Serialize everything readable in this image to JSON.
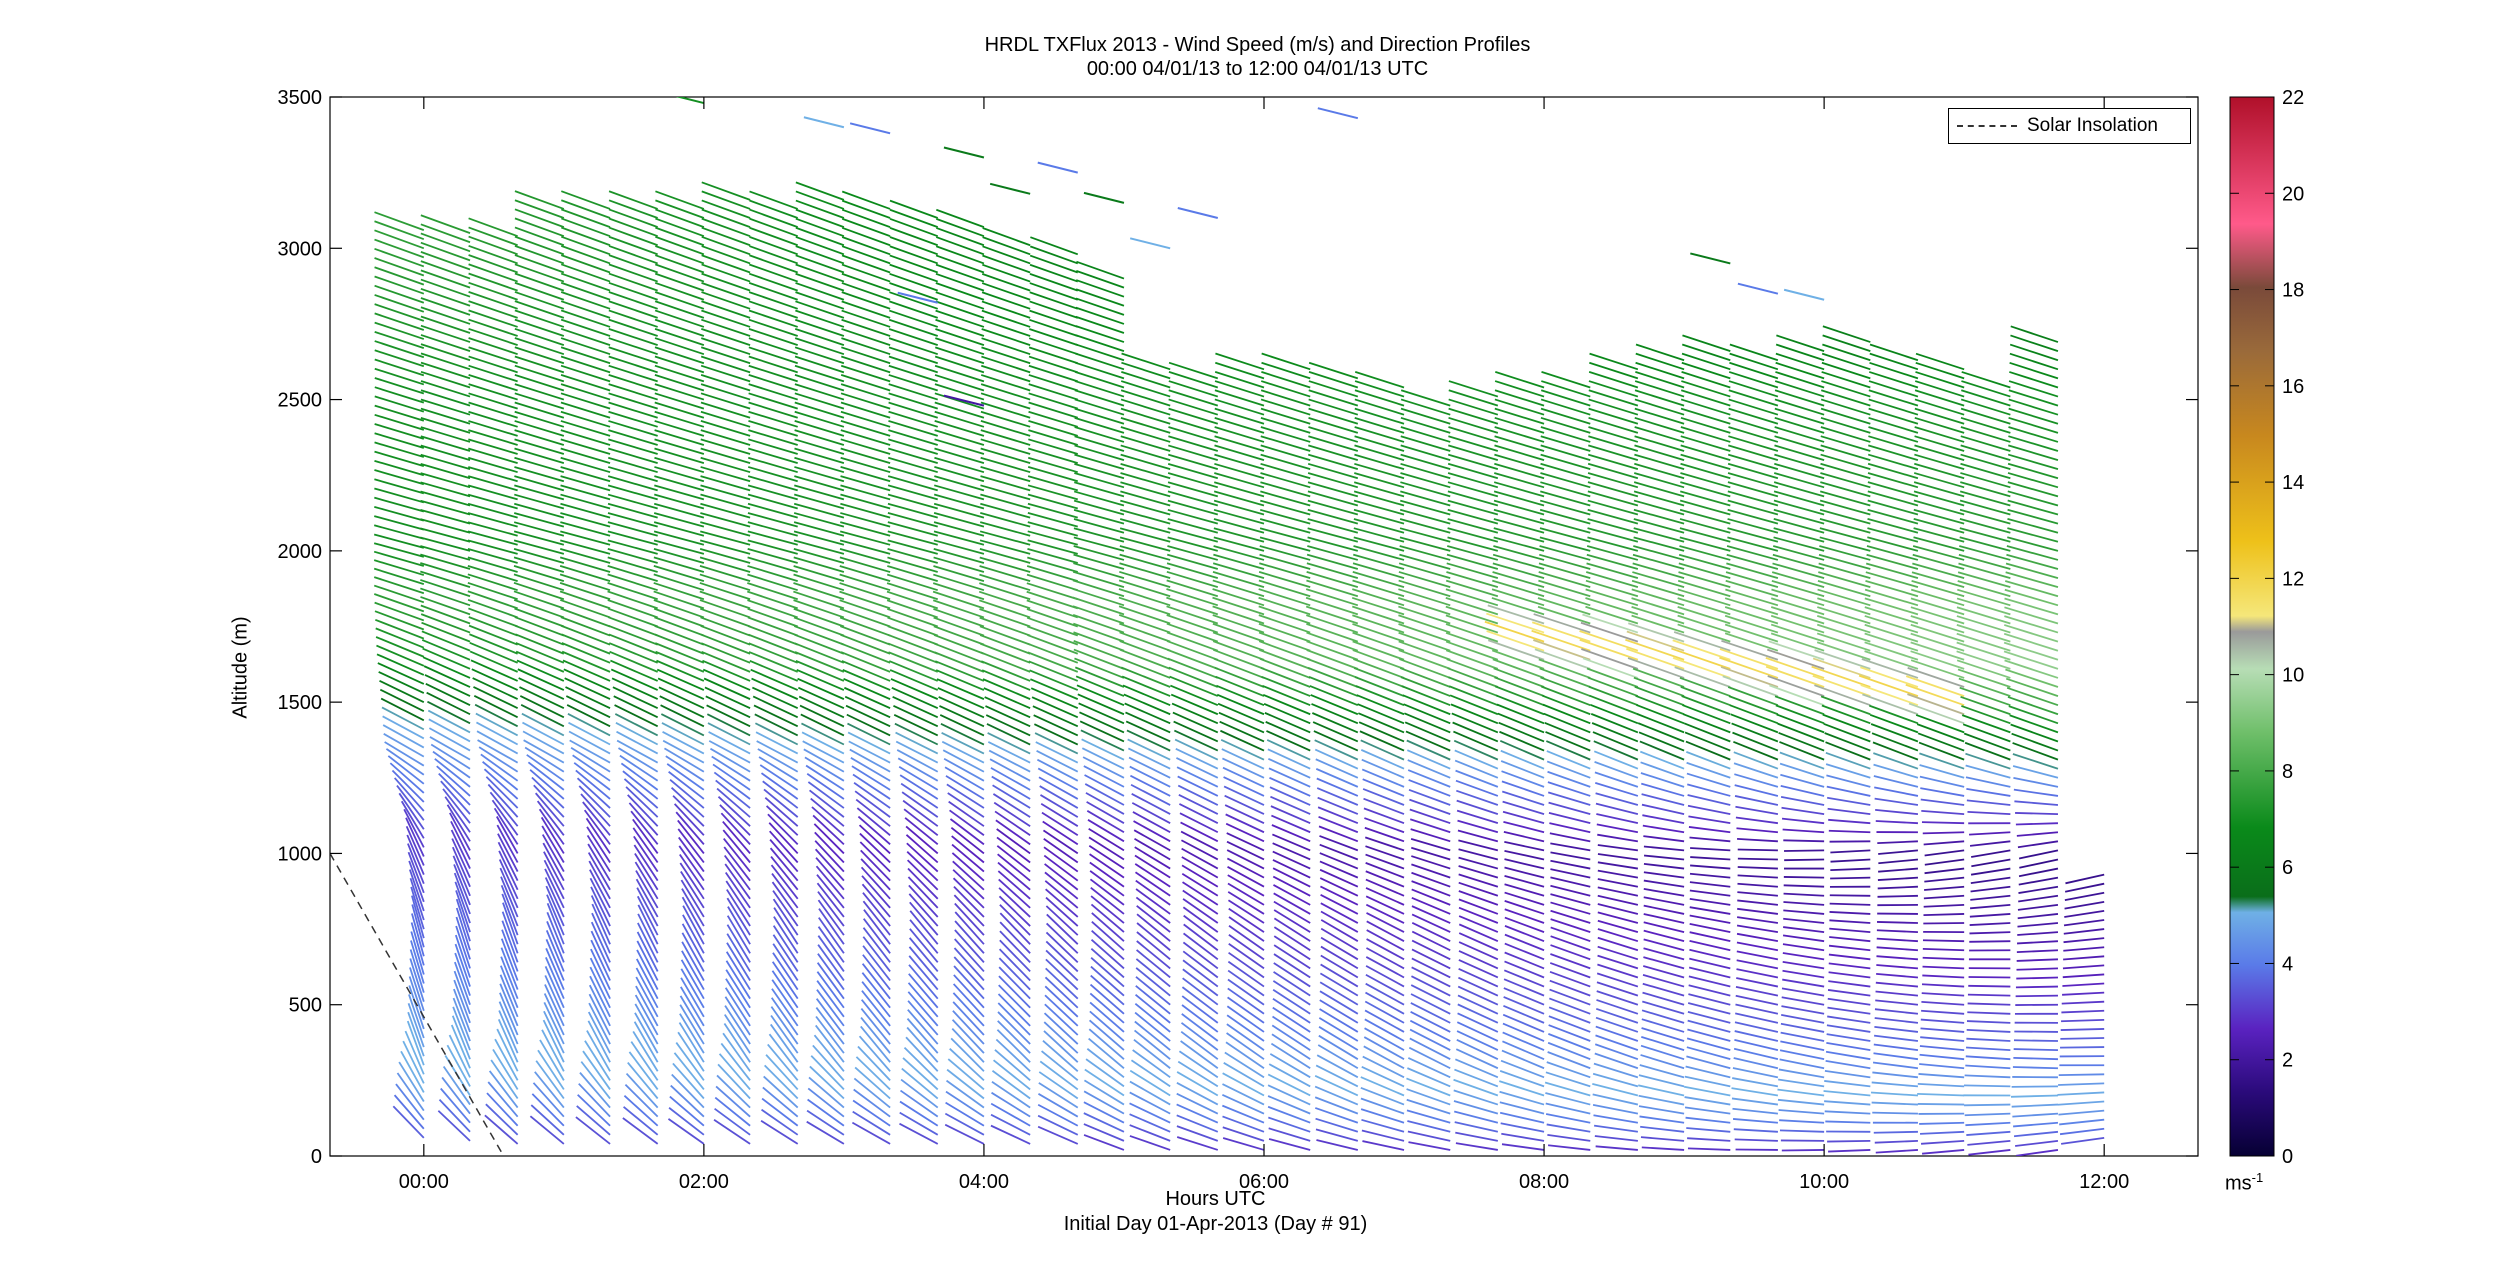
{
  "chart_data": {
    "type": "wind-barb-profile",
    "title": "HRDL TXFlux 2013 - Wind Speed (m/s) and Direction Profiles",
    "subtitle": "00:00 04/01/13 to 12:00 04/01/13  UTC",
    "xlabel": "Hours UTC",
    "xlabel2": "Initial Day 01-Apr-2013 (Day # 91)",
    "ylabel": "Altitude (m)",
    "xlim": [
      -0.67,
      12.67
    ],
    "ylim": [
      0,
      3500
    ],
    "x_ticks": [
      0,
      2,
      4,
      6,
      8,
      10,
      12
    ],
    "x_tick_labels": [
      "00:00",
      "02:00",
      "04:00",
      "06:00",
      "08:00",
      "10:00",
      "12:00"
    ],
    "y_ticks": [
      0,
      500,
      1000,
      1500,
      2000,
      2500,
      3000,
      3500
    ],
    "y_tick_labels": [
      "0",
      "500",
      "1000",
      "1500",
      "2000",
      "2500",
      "3000",
      "3500"
    ],
    "colorbar": {
      "range": [
        0,
        22
      ],
      "ticks": [
        0,
        2,
        4,
        6,
        8,
        10,
        12,
        14,
        16,
        18,
        20,
        22
      ],
      "tick_labels": [
        "0",
        "2",
        "4",
        "6",
        "8",
        "10",
        "12",
        "14",
        "16",
        "18",
        "20",
        "22"
      ],
      "unit": "ms",
      "unit_exp": "-1"
    },
    "legend": {
      "position": "top-right",
      "entries": [
        "Solar Insolation"
      ]
    },
    "solar_insolation": {
      "x": [
        -0.67,
        0.57
      ],
      "y": [
        1000,
        0
      ]
    },
    "profile_times_hours": [
      0.0,
      0.33,
      0.67,
      1.0,
      1.33,
      1.67,
      2.0,
      2.33,
      2.67,
      3.0,
      3.33,
      3.67,
      4.0,
      4.33,
      4.67,
      5.0,
      5.33,
      5.67,
      6.0,
      6.33,
      6.67,
      7.0,
      7.33,
      7.67,
      8.0,
      8.33,
      8.67,
      9.0,
      9.33,
      9.67,
      10.0,
      10.33,
      10.67,
      11.0,
      11.33,
      11.67,
      12.0
    ],
    "profile_tops_m": [
      3070,
      3060,
      3050,
      3150,
      3150,
      3150,
      3150,
      3160,
      3150,
      3160,
      3130,
      3100,
      3080,
      3010,
      2980,
      2900,
      2620,
      2580,
      2610,
      2600,
      2580,
      2550,
      2500,
      2520,
      2540,
      2560,
      2600,
      2650,
      2680,
      2650,
      2680,
      2700,
      2650,
      2600,
      2560,
      2700,
      950
    ],
    "profile_bottoms_m": [
      60,
      50,
      40,
      40,
      40,
      40,
      40,
      40,
      40,
      40,
      40,
      40,
      40,
      40,
      40,
      20,
      20,
      20,
      20,
      20,
      20,
      20,
      20,
      20,
      20,
      20,
      20,
      20,
      20,
      20,
      20,
      20,
      20,
      20,
      20,
      20,
      60
    ],
    "level_spacing_m": 30,
    "speed_profile": {
      "altitude_m": [
        0,
        100,
        200,
        300,
        400,
        600,
        800,
        1000,
        1200,
        1400,
        1600,
        1800,
        2000,
        2500,
        3000
      ],
      "speed_early_ms": [
        3,
        4,
        5,
        5,
        4.5,
        4,
        3.5,
        3,
        4,
        5,
        7,
        7.5,
        7,
        7,
        7.5
      ],
      "speed_late_ms": [
        2.5,
        4,
        5,
        4,
        3.5,
        2.5,
        2,
        1.5,
        4,
        7,
        9.5,
        9,
        7.5,
        7,
        5
      ]
    },
    "direction_profile": {
      "altitude_m": [
        0,
        300,
        700,
        1000,
        1300,
        2000,
        3000
      ],
      "barb_angle_early_deg": [
        -40,
        -70,
        -75,
        -65,
        -30,
        -15,
        -20
      ],
      "barb_angle_late_deg": [
        10,
        0,
        5,
        15,
        -20,
        -15,
        -20
      ]
    },
    "jet_core": {
      "x_hours": [
        8.0,
        11.0
      ],
      "altitude_m": [
        1700,
        1500
      ],
      "speed_ms": 12
    },
    "upper_scatter": [
      {
        "x": 3.0,
        "y": 3400,
        "v": 5
      },
      {
        "x": 3.33,
        "y": 3380,
        "v": 4
      },
      {
        "x": 4.0,
        "y": 3300,
        "v": 6
      },
      {
        "x": 4.33,
        "y": 3180,
        "v": 6
      },
      {
        "x": 4.67,
        "y": 3250,
        "v": 4
      },
      {
        "x": 5.0,
        "y": 3150,
        "v": 6
      },
      {
        "x": 6.67,
        "y": 3430,
        "v": 4
      },
      {
        "x": 2.0,
        "y": 3480,
        "v": 7
      },
      {
        "x": 9.33,
        "y": 2950,
        "v": 6
      },
      {
        "x": 9.67,
        "y": 2850,
        "v": 4
      },
      {
        "x": 10.0,
        "y": 2830,
        "v": 5
      },
      {
        "x": 5.33,
        "y": 3000,
        "v": 5
      },
      {
        "x": 5.67,
        "y": 3100,
        "v": 4
      },
      {
        "x": 3.67,
        "y": 2820,
        "v": 4
      },
      {
        "x": 4.0,
        "y": 2480,
        "v": 2
      }
    ]
  }
}
